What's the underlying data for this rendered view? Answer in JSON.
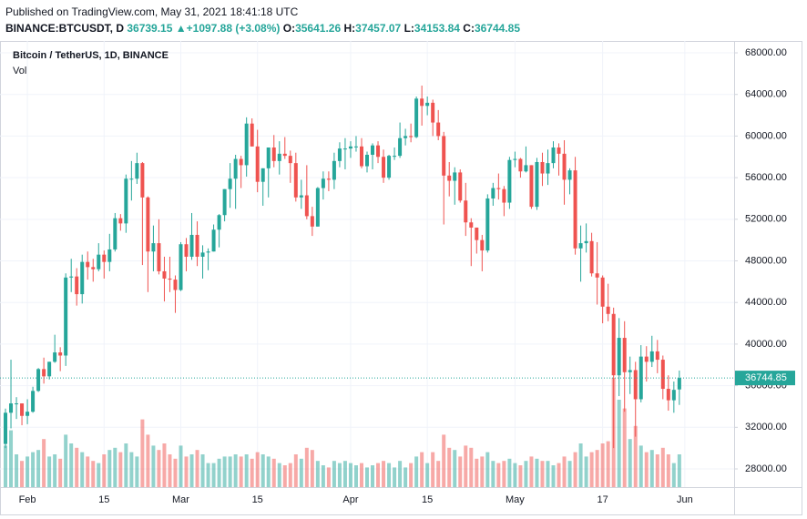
{
  "header": {
    "published": "Published on TradingView.com, May 31, 2021 18:41:18 UTC",
    "symbol": "BINANCE:BTCUSDT, D",
    "last": "36739.15",
    "arrow": "▲",
    "change": "+1097.88 (+3.08%)",
    "o_label": "O:",
    "o": "35641.26",
    "h_label": "H:",
    "h": "37457.07",
    "l_label": "L:",
    "l": "34153.84",
    "c_label": "C:",
    "c": "36744.85"
  },
  "chart_data": {
    "type": "candlestick",
    "title": "Bitcoin / TetherUS, 1D, BINANCE",
    "up_color": "#26a69a",
    "down_color": "#ef5350",
    "grid": true,
    "x": [
      "2021-01-28",
      "2021-01-29",
      "2021-01-30",
      "2021-01-31",
      "2021-02-01",
      "2021-02-02",
      "2021-02-03",
      "2021-02-04",
      "2021-02-05",
      "2021-02-06",
      "2021-02-07",
      "2021-02-08",
      "2021-02-09",
      "2021-02-10",
      "2021-02-11",
      "2021-02-12",
      "2021-02-13",
      "2021-02-14",
      "2021-02-15",
      "2021-02-16",
      "2021-02-17",
      "2021-02-18",
      "2021-02-19",
      "2021-02-20",
      "2021-02-21",
      "2021-02-22",
      "2021-02-23",
      "2021-02-24",
      "2021-02-25",
      "2021-02-26",
      "2021-02-27",
      "2021-02-28",
      "2021-03-01",
      "2021-03-02",
      "2021-03-03",
      "2021-03-04",
      "2021-03-05",
      "2021-03-06",
      "2021-03-07",
      "2021-03-08",
      "2021-03-09",
      "2021-03-10",
      "2021-03-11",
      "2021-03-12",
      "2021-03-13",
      "2021-03-14",
      "2021-03-15",
      "2021-03-16",
      "2021-03-17",
      "2021-03-18",
      "2021-03-19",
      "2021-03-20",
      "2021-03-21",
      "2021-03-22",
      "2021-03-23",
      "2021-03-24",
      "2021-03-25",
      "2021-03-26",
      "2021-03-27",
      "2021-03-28",
      "2021-03-29",
      "2021-03-30",
      "2021-03-31",
      "2021-04-01",
      "2021-04-02",
      "2021-04-03",
      "2021-04-04",
      "2021-04-05",
      "2021-04-06",
      "2021-04-07",
      "2021-04-08",
      "2021-04-09",
      "2021-04-10",
      "2021-04-11",
      "2021-04-12",
      "2021-04-13",
      "2021-04-14",
      "2021-04-15",
      "2021-04-16",
      "2021-04-17",
      "2021-04-18",
      "2021-04-19",
      "2021-04-20",
      "2021-04-21",
      "2021-04-22",
      "2021-04-23",
      "2021-04-24",
      "2021-04-25",
      "2021-04-26",
      "2021-04-27",
      "2021-04-28",
      "2021-04-29",
      "2021-04-30",
      "2021-05-01",
      "2021-05-02",
      "2021-05-03",
      "2021-05-04",
      "2021-05-05",
      "2021-05-06",
      "2021-05-07",
      "2021-05-08",
      "2021-05-09",
      "2021-05-10",
      "2021-05-11",
      "2021-05-12",
      "2021-05-13",
      "2021-05-14",
      "2021-05-15",
      "2021-05-16",
      "2021-05-17",
      "2021-05-18",
      "2021-05-19",
      "2021-05-20",
      "2021-05-21",
      "2021-05-22",
      "2021-05-23",
      "2021-05-24",
      "2021-05-25",
      "2021-05-26",
      "2021-05-27",
      "2021-05-28",
      "2021-05-29",
      "2021-05-30",
      "2021-05-31"
    ],
    "open": [
      30400,
      33400,
      34300,
      34300,
      33100,
      33500,
      35500,
      37600,
      36900,
      38300,
      39200,
      38900,
      46400,
      46500,
      44800,
      47900,
      47400,
      47200,
      48600,
      47900,
      49100,
      52100,
      51600,
      55900,
      55900,
      57400,
      54100,
      48900,
      49700,
      47000,
      46300,
      46200,
      45200,
      49600,
      48400,
      50500,
      48400,
      48800,
      48900,
      51000,
      52400,
      54900,
      55900,
      57800,
      57200,
      61200,
      59000,
      55600,
      56900,
      58900,
      57600,
      58300,
      58100,
      57400,
      54100,
      54300,
      52300,
      51300,
      55000,
      55900,
      55800,
      57600,
      58800,
      58800,
      59000,
      59000,
      57100,
      58200,
      59100,
      58000,
      56000,
      58100,
      58100,
      59800,
      60000,
      59900,
      63600,
      62900,
      63200,
      61300,
      60000,
      56200,
      55700,
      56500,
      53800,
      51700,
      51200,
      50000,
      49000,
      54000,
      55000,
      54900,
      53600,
      57700,
      57800,
      56600,
      57200,
      53200,
      57500,
      56400,
      57400,
      58900,
      58300,
      55800,
      56700,
      49200,
      49700,
      49900,
      46800,
      46400,
      43600,
      42900,
      37000,
      40600,
      37300,
      37500,
      34700,
      38800,
      38300,
      39300,
      38500,
      35700,
      34600,
      35641.26
    ],
    "high": [
      33800,
      38500,
      34900,
      34300,
      34700,
      35900,
      37700,
      38700,
      38300,
      40900,
      39700,
      46800,
      48200,
      47300,
      48600,
      48900,
      48200,
      49700,
      49000,
      50600,
      52600,
      52500,
      56300,
      57600,
      58400,
      57500,
      54200,
      51400,
      52000,
      48400,
      48400,
      46600,
      49800,
      50200,
      52600,
      51800,
      49500,
      49200,
      51500,
      52500,
      54900,
      57400,
      58200,
      58100,
      61800,
      61700,
      60600,
      56900,
      58900,
      60100,
      59500,
      59900,
      58600,
      58400,
      55800,
      57200,
      53200,
      55100,
      56600,
      56600,
      58400,
      59400,
      59800,
      59500,
      60000,
      59800,
      58500,
      59300,
      59500,
      58700,
      58200,
      58900,
      61300,
      60700,
      61200,
      63800,
      64850,
      63800,
      63500,
      62500,
      60400,
      57500,
      57000,
      56800,
      55500,
      52100,
      51200,
      50500,
      54400,
      55500,
      56400,
      55200,
      58000,
      58500,
      57900,
      59000,
      57200,
      57900,
      58400,
      58700,
      59500,
      59300,
      59600,
      56900,
      58000,
      51400,
      51600,
      50700,
      49800,
      46600,
      45800,
      43500,
      42500,
      42200,
      38800,
      38300,
      39900,
      39800,
      40800,
      40400,
      38900,
      37000,
      36400,
      37457.07
    ],
    "low": [
      30000,
      31900,
      32800,
      32200,
      32300,
      33400,
      35400,
      36200,
      36600,
      38200,
      37400,
      37900,
      45000,
      43700,
      43900,
      46200,
      46000,
      47000,
      46300,
      47000,
      48900,
      50900,
      50700,
      53800,
      55400,
      47600,
      45000,
      47000,
      46700,
      44100,
      45000,
      43000,
      45100,
      47000,
      48100,
      47500,
      46300,
      47100,
      48900,
      49300,
      51800,
      53100,
      53000,
      55000,
      56100,
      59000,
      54600,
      53300,
      54100,
      57000,
      56300,
      57800,
      55500,
      53700,
      53000,
      52000,
      50400,
      51300,
      53900,
      54700,
      54900,
      57000,
      56800,
      57900,
      58500,
      56900,
      56500,
      56800,
      57400,
      55500,
      55800,
      57700,
      57900,
      59100,
      59400,
      59800,
      61000,
      62000,
      60000,
      59600,
      51500,
      54200,
      53400,
      53600,
      50400,
      47500,
      48700,
      47000,
      48800,
      53300,
      53900,
      52300,
      53000,
      57000,
      56000,
      56500,
      53000,
      52900,
      55200,
      55300,
      56900,
      56200,
      53400,
      54400,
      48600,
      46000,
      48800,
      46500,
      43800,
      42000,
      42200,
      30000,
      35000,
      33500,
      35200,
      31100,
      34400,
      36400,
      37800,
      37200,
      34700,
      33600,
      33400,
      34153.84
    ],
    "close": [
      33400,
      34300,
      34300,
      33100,
      33500,
      35500,
      37600,
      36900,
      38300,
      39200,
      38900,
      46400,
      46500,
      44800,
      47900,
      47400,
      47200,
      48600,
      47900,
      49100,
      52100,
      51600,
      55900,
      55900,
      57400,
      54100,
      48900,
      49700,
      47000,
      46300,
      46200,
      45200,
      49600,
      48400,
      50500,
      48400,
      48800,
      48900,
      51000,
      52400,
      54900,
      55900,
      57800,
      57200,
      61200,
      59000,
      55600,
      56900,
      58900,
      57600,
      58300,
      58100,
      57400,
      54100,
      54300,
      52300,
      51300,
      55000,
      55900,
      55800,
      57600,
      58800,
      58800,
      59000,
      59000,
      57100,
      58200,
      59100,
      58000,
      56000,
      58100,
      58100,
      59800,
      60000,
      59900,
      63600,
      62900,
      63200,
      61300,
      60000,
      56200,
      55700,
      56500,
      53800,
      51700,
      51200,
      50000,
      49000,
      54000,
      55000,
      54900,
      53600,
      57700,
      57800,
      56600,
      57200,
      53200,
      57500,
      56400,
      57400,
      58900,
      58300,
      55800,
      56700,
      49200,
      49700,
      49900,
      46800,
      46400,
      43600,
      42900,
      37000,
      40600,
      37300,
      37500,
      34700,
      38800,
      38300,
      39300,
      38500,
      35700,
      34600,
      35600,
      36744.85
    ],
    "volume": {
      "name": "Vol",
      "values": [
        95000,
        130000,
        75000,
        60000,
        70000,
        80000,
        85000,
        110000,
        70000,
        75000,
        65000,
        120000,
        100000,
        90000,
        80000,
        70000,
        60000,
        55000,
        75000,
        85000,
        90000,
        80000,
        100000,
        80000,
        70000,
        155000,
        120000,
        95000,
        85000,
        100000,
        75000,
        65000,
        95000,
        70000,
        75000,
        85000,
        75000,
        55000,
        55000,
        65000,
        70000,
        70000,
        75000,
        70000,
        75000,
        65000,
        80000,
        75000,
        70000,
        65000,
        55000,
        50000,
        55000,
        75000,
        65000,
        90000,
        85000,
        60000,
        50000,
        45000,
        60000,
        55000,
        60000,
        55000,
        50000,
        55000,
        45000,
        50000,
        55000,
        60000,
        55000,
        45000,
        60000,
        45000,
        55000,
        70000,
        80000,
        55000,
        80000,
        60000,
        120000,
        90000,
        85000,
        70000,
        95000,
        90000,
        65000,
        70000,
        80000,
        60000,
        55000,
        60000,
        65000,
        55000,
        50000,
        60000,
        70000,
        65000,
        60000,
        60000,
        50000,
        55000,
        70000,
        60000,
        80000,
        100000,
        70000,
        80000,
        85000,
        100000,
        105000,
        250000,
        200000,
        180000,
        110000,
        140000,
        95000,
        80000,
        85000,
        75000,
        90000,
        75000,
        55000,
        75000
      ]
    },
    "last_price": 36744.85,
    "ylim": [
      26250,
      69140
    ],
    "yticks": [
      {
        "value": 28000,
        "label": "28000.00"
      },
      {
        "value": 32000,
        "label": "32000.00"
      },
      {
        "value": 36000,
        "label": "36000.00"
      },
      {
        "value": 40000,
        "label": "40000.00"
      },
      {
        "value": 44000,
        "label": "44000.00"
      },
      {
        "value": 48000,
        "label": "48000.00"
      },
      {
        "value": 52000,
        "label": "52000.00"
      },
      {
        "value": 56000,
        "label": "56000.00"
      },
      {
        "value": 60000,
        "label": "60000.00"
      },
      {
        "value": 64000,
        "label": "64000.00"
      },
      {
        "value": 68000,
        "label": "68000.00"
      }
    ],
    "xlim": [
      "2021-01-27",
      "2021-06-10"
    ],
    "xticks": [
      {
        "value": "2021-02-01",
        "label": "Feb"
      },
      {
        "value": "2021-02-15",
        "label": "15"
      },
      {
        "value": "2021-03-01",
        "label": "Mar"
      },
      {
        "value": "2021-03-15",
        "label": "15"
      },
      {
        "value": "2021-04-01",
        "label": "Apr"
      },
      {
        "value": "2021-04-15",
        "label": "15"
      },
      {
        "value": "2021-05-01",
        "label": "May"
      },
      {
        "value": "2021-05-17",
        "label": "17"
      },
      {
        "value": "2021-06-01",
        "label": "Jun"
      }
    ]
  }
}
